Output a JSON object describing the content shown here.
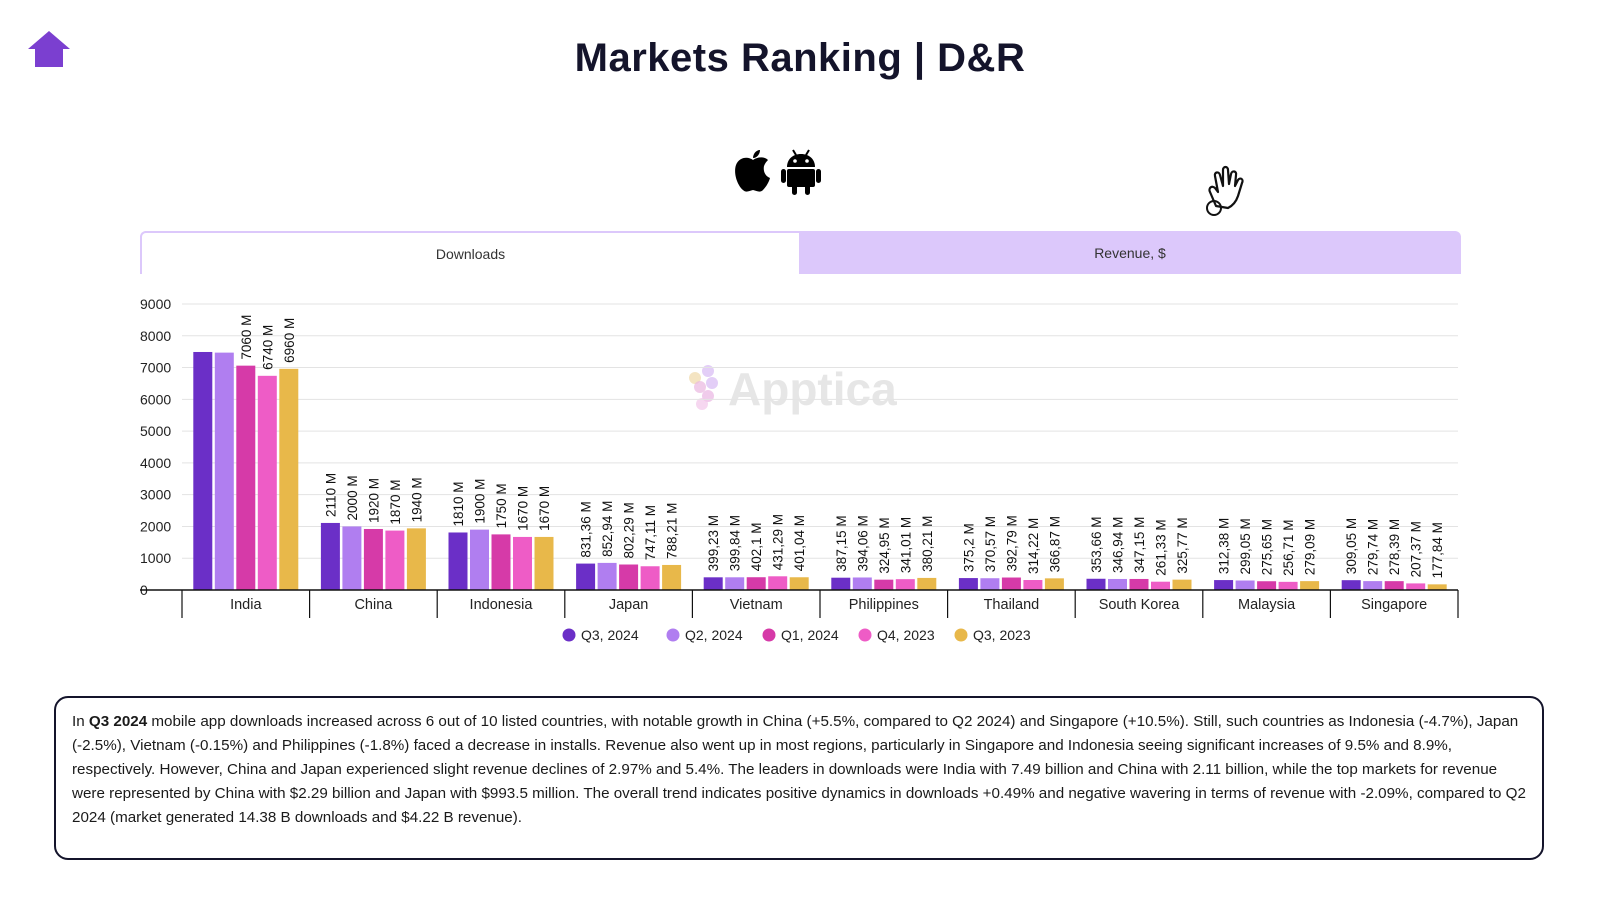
{
  "header": {
    "title": "Markets Ranking | D&R"
  },
  "watermark": "Apptica",
  "tabs": [
    {
      "label": "Downloads",
      "active": true
    },
    {
      "label": "Revenue, $",
      "active": false
    }
  ],
  "colors": {
    "accent": "#7b3fd0",
    "tab_bg": "#dcc8fb",
    "border": "#14142b"
  },
  "chart_data": {
    "type": "bar",
    "title": "",
    "xlabel": "",
    "ylabel": "",
    "ylim": [
      0,
      9000
    ],
    "yticks": [
      0,
      1000,
      2000,
      3000,
      4000,
      5000,
      6000,
      7000,
      8000,
      9000
    ],
    "grid": true,
    "legend_position": "bottom",
    "categories": [
      "India",
      "China",
      "Indonesia",
      "Japan",
      "Vietnam",
      "Philippines",
      "Thailand",
      "South Korea",
      "Malaysia",
      "Singapore"
    ],
    "series": [
      {
        "name": "Q3, 2024",
        "color": "#6b2fc7",
        "values": [
          7490,
          2110,
          1810,
          831.36,
          399.23,
          387.15,
          375.2,
          353.66,
          312.38,
          309.05
        ],
        "labels": [
          "",
          "2110 M",
          "1810 M",
          "831,36 M",
          "399,23 M",
          "387,15 M",
          "375,2 M",
          "353,66 M",
          "312,38 M",
          "309,05 M"
        ]
      },
      {
        "name": "Q2, 2024",
        "color": "#b07ef0",
        "values": [
          7470,
          2000,
          1900,
          852.94,
          399.84,
          394.06,
          370.57,
          346.94,
          299.05,
          279.74
        ],
        "labels": [
          "",
          "2000 M",
          "1900 M",
          "852,94 M",
          "399,84 M",
          "394,06 M",
          "370,57 M",
          "346,94 M",
          "299,05 M",
          "279,74 M"
        ]
      },
      {
        "name": "Q1, 2024",
        "color": "#d63aa8",
        "values": [
          7060,
          1920,
          1750,
          802.29,
          402.1,
          324.95,
          392.79,
          347.15,
          275.65,
          278.39
        ],
        "labels": [
          "7060 M",
          "1920 M",
          "1750 M",
          "802,29 M",
          "402,1 M",
          "324,95 M",
          "392,79 M",
          "347,15 M",
          "275,65 M",
          "278,39 M"
        ]
      },
      {
        "name": "Q4, 2023",
        "color": "#ee5cc6",
        "values": [
          6740,
          1870,
          1670,
          747.11,
          431.29,
          341.01,
          314.22,
          261.33,
          256.71,
          207.37
        ],
        "labels": [
          "6740 M",
          "1870 M",
          "1670 M",
          "747,11 M",
          "431,29 M",
          "341,01 M",
          "314,22 M",
          "261,33 M",
          "256,71 M",
          "207,37 M"
        ]
      },
      {
        "name": "Q3, 2023",
        "color": "#e8b84a",
        "values": [
          6960,
          1940,
          1670,
          788.21,
          401.04,
          380.21,
          366.87,
          325.77,
          279.09,
          177.84
        ],
        "labels": [
          "6960 M",
          "1940 M",
          "1670 M",
          "788,21 M",
          "401,04 M",
          "380,21 M",
          "366,87 M",
          "325,77 M",
          "279,09 M",
          "177,84 M"
        ]
      }
    ]
  },
  "summary": {
    "lead": "In ",
    "bold": "Q3 2024",
    "text": " mobile app downloads increased across 6 out of 10 listed countries, with notable growth in China (+5.5%, compared to Q2 2024) and Singapore (+10.5%). Still, such countries as Indonesia (-4.7%), Japan (-2.5%), Vietnam (-0.15%) and Philippines (-1.8%) faced a decrease in installs. Revenue also went up in most regions, particularly in Singapore and Indonesia seeing significant increases of 9.5% and 8.9%, respectively. However, China and Japan experienced slight revenue declines of 2.97% and 5.4%. The leaders in downloads were India with 7.49 billion and China with 2.11 billion, while the top markets for revenue were represented by China with $2.29 billion and Japan with $993.5 million. The overall trend indicates positive dynamics in downloads +0.49% and negative wavering in terms of revenue with -2.09%, compared to Q2 2024 (market generated 14.38 B downloads and $4.22 B revenue)."
  }
}
